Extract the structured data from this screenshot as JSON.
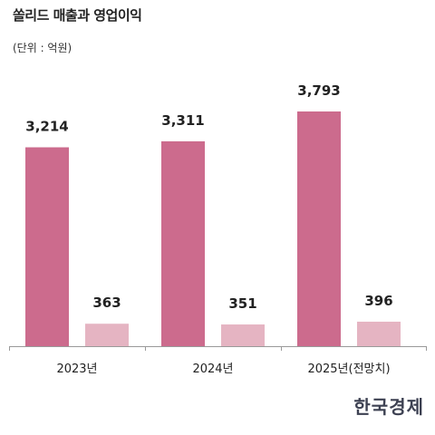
{
  "title": "쏠리드 매출과 영업이익",
  "unit_label": "(단위 : 억원)",
  "chart_data": {
    "type": "bar",
    "categories": [
      "2023년",
      "2024년",
      "2025년(전망치)"
    ],
    "series": [
      {
        "values": [
          3214,
          3311,
          3793
        ],
        "color": "#cc6b8d",
        "labels": [
          "3,214",
          "3,311",
          "3,793"
        ]
      },
      {
        "values": [
          363,
          351,
          396
        ],
        "color": "#e5b4c2",
        "labels": [
          "363",
          "351",
          "396"
        ]
      }
    ],
    "ylim": [
      0,
      3793
    ],
    "grid": false,
    "legend": "none"
  },
  "logo_text": "한국경제"
}
